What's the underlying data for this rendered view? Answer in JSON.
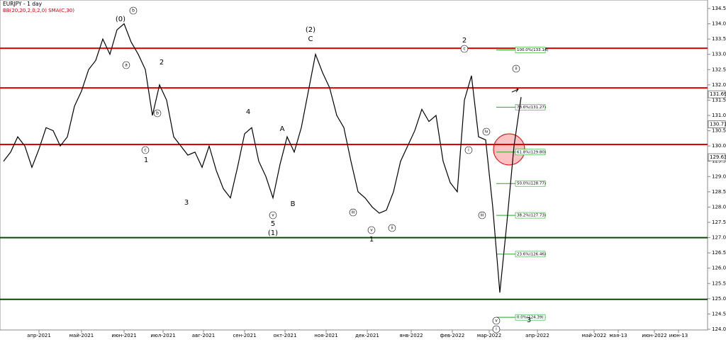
{
  "header": {
    "symbol": "EURJPY - 1 day",
    "indicators": "BB(20,20,2,0;2,0) SMA(C,30)"
  },
  "price_axis": {
    "ylim": [
      124.0,
      134.5
    ],
    "yticks": [
      {
        "value": 124.0,
        "label": "124.00"
      },
      {
        "value": 124.5,
        "label": "124.50"
      },
      {
        "value": 125.0,
        "label": "125.00"
      },
      {
        "value": 125.5,
        "label": "125.50"
      },
      {
        "value": 126.0,
        "label": "126.00"
      },
      {
        "value": 126.5,
        "label": "126.50"
      },
      {
        "value": 127.0,
        "label": "127.00"
      },
      {
        "value": 127.5,
        "label": "127.50"
      },
      {
        "value": 128.0,
        "label": "128.00"
      },
      {
        "value": 128.5,
        "label": "128.50"
      },
      {
        "value": 129.0,
        "label": "129.00"
      },
      {
        "value": 129.5,
        "label": "129.50"
      },
      {
        "value": 130.0,
        "label": "130.00"
      },
      {
        "value": 130.5,
        "label": "130.50"
      },
      {
        "value": 131.0,
        "label": "131.00"
      },
      {
        "value": 131.5,
        "label": "131.50"
      },
      {
        "value": 132.0,
        "label": "132.00"
      },
      {
        "value": 132.5,
        "label": "132.50"
      },
      {
        "value": 133.0,
        "label": "133.00"
      },
      {
        "value": 133.5,
        "label": "133.50"
      },
      {
        "value": 134.0,
        "label": "134.00"
      },
      {
        "value": 134.5,
        "label": "134.50"
      }
    ],
    "markers": [
      {
        "value": 131.69,
        "label": "131.69"
      },
      {
        "value": 130.71,
        "label": "130.71"
      },
      {
        "value": 129.63,
        "label": "129.63"
      }
    ]
  },
  "date_axis": [
    "апр-2021",
    "май-2021",
    "июн-2021",
    "июл-2021",
    "авг-2021",
    "сен-2021",
    "окт-2021",
    "ноя-2021",
    "дек-2021",
    "янв-2022",
    "фев-2022",
    "мар-2022",
    "апр-2022",
    "май-2022",
    "мая-13",
    "июн-2022",
    "июн-13"
  ],
  "levels": [
    {
      "value": 133.2,
      "color": "#e00000"
    },
    {
      "value": 131.9,
      "color": "#e00000"
    },
    {
      "value": 130.05,
      "color": "#e00000"
    },
    {
      "value": 127.0,
      "color": "#005000"
    },
    {
      "value": 124.98,
      "color": "#005000"
    }
  ],
  "fibonacci": [
    {
      "value": 133.14,
      "label": "100.0%(133.14)"
    },
    {
      "value": 131.27,
      "label": "78.6%(131.27)"
    },
    {
      "value": 129.8,
      "label": "61.8%(129.80)"
    },
    {
      "value": 128.77,
      "label": "50.0%(128.77)"
    },
    {
      "value": 127.73,
      "label": "38.2%(127.73)"
    },
    {
      "value": 126.46,
      "label": "23.6%(126.46)"
    },
    {
      "value": 124.39,
      "label": "0.0%(124.39)"
    }
  ],
  "price": [
    129.5,
    129.8,
    130.3,
    130.0,
    129.3,
    129.9,
    130.6,
    130.5,
    130.0,
    130.3,
    131.3,
    131.8,
    132.5,
    132.8,
    133.5,
    133.0,
    133.8,
    134.0,
    133.4,
    133.0,
    132.5,
    131.0,
    132.0,
    131.5,
    130.3,
    130.0,
    129.7,
    129.8,
    129.3,
    130.0,
    129.2,
    128.6,
    128.3,
    129.3,
    130.4,
    130.6,
    129.5,
    129.0,
    128.3,
    129.4,
    130.3,
    129.8,
    130.6,
    131.8,
    133.0,
    132.4,
    131.9,
    131.0,
    130.6,
    129.5,
    128.5,
    128.3,
    128.0,
    127.8,
    127.9,
    128.5,
    129.5,
    130.0,
    130.5,
    131.2,
    130.8,
    131.0,
    129.5,
    128.8,
    128.5,
    131.5,
    132.3,
    130.3,
    130.2,
    128.0,
    125.2,
    127.5,
    130.0,
    131.6
  ],
  "waves": [
    "(0)",
    "2",
    "1",
    "3",
    "4",
    "A",
    "B",
    "5",
    "(1)",
    "(2)",
    "C",
    "1",
    "2",
    "3",
    "b",
    "c",
    "ii",
    "a",
    "b",
    "c",
    "v",
    "iii",
    "v",
    "ii",
    "iv",
    "i",
    "iii",
    "v",
    "i"
  ]
}
